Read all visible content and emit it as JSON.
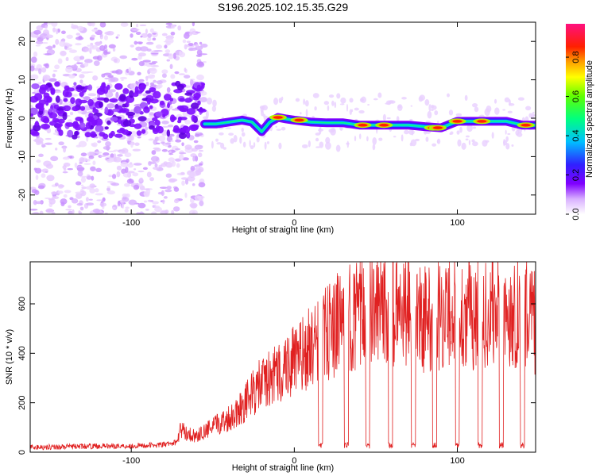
{
  "figure": {
    "title": "S196.2025.102.15.35.G29"
  },
  "chart_data": [
    {
      "type": "heatmap",
      "xlabel": "Height of straight line (km)",
      "ylabel": "Frequency (Hz)",
      "xlim": [
        -162,
        148
      ],
      "ylim": [
        -25,
        25
      ],
      "xticks": [
        -100,
        0,
        100
      ],
      "yticks": [
        -20,
        -10,
        0,
        10,
        20
      ],
      "grid": false,
      "colorbar": {
        "label": "Normalized spectral amplitude",
        "range": [
          0,
          0.97
        ],
        "ticks": [
          0.0,
          0.2,
          0.4,
          0.6,
          0.8
        ],
        "colormap": "white-violet-blue-cyan-green-yellow-orange-red-magenta"
      },
      "noise_region_x": [
        -162,
        -55
      ],
      "ridge": {
        "x": [
          -55,
          -48,
          -40,
          -32,
          -26,
          -20,
          -15,
          -10,
          -5,
          0,
          10,
          20,
          30,
          40,
          50,
          60,
          70,
          80,
          90,
          100,
          110,
          120,
          130,
          140,
          148
        ],
        "y": [
          -1.5,
          -1.5,
          -1.0,
          -0.5,
          -1.0,
          -3.5,
          -1.0,
          0.2,
          -0.2,
          -0.5,
          -1.0,
          -1.2,
          -1.2,
          -1.8,
          -1.8,
          -1.8,
          -1.8,
          -2.2,
          -2.5,
          -0.8,
          -0.8,
          -0.8,
          -0.8,
          -1.8,
          -1.8
        ]
      },
      "peaks": [
        {
          "x": -10,
          "y": 0.2,
          "amp": 0.97
        },
        {
          "x": 3,
          "y": -0.5,
          "amp": 0.97
        },
        {
          "x": 42,
          "y": -1.8,
          "amp": 0.97
        },
        {
          "x": 55,
          "y": -1.8,
          "amp": 0.97
        },
        {
          "x": 85,
          "y": -2.5,
          "amp": 0.97
        },
        {
          "x": 88,
          "y": -2.5,
          "amp": 0.97
        },
        {
          "x": 100,
          "y": -0.8,
          "amp": 0.97
        },
        {
          "x": 115,
          "y": -0.8,
          "amp": 0.97
        },
        {
          "x": 142,
          "y": -1.8,
          "amp": 0.97
        }
      ]
    },
    {
      "type": "line",
      "xlabel": "Height of straight line (km)",
      "ylabel": "SNR (10 * v/v)",
      "xlim": [
        -162,
        148
      ],
      "ylim": [
        0,
        770
      ],
      "xticks": [
        -100,
        0,
        100
      ],
      "yticks": [
        0,
        200,
        400,
        600
      ],
      "grid": false,
      "series": [
        {
          "color": "#e02020",
          "x": [
            -162,
            -140,
            -120,
            -100,
            -80,
            -72,
            -70,
            -65,
            -60,
            -55,
            -50,
            -45,
            -40,
            -35,
            -30,
            -25,
            -20,
            -15,
            -10,
            -5,
            0,
            5,
            10,
            15,
            20,
            30,
            40,
            50,
            60,
            70,
            80,
            90,
            100,
            110,
            120,
            130,
            140,
            148
          ],
          "values": [
            20,
            22,
            25,
            25,
            30,
            40,
            100,
            80,
            70,
            90,
            110,
            130,
            150,
            180,
            220,
            260,
            300,
            320,
            340,
            380,
            400,
            420,
            460,
            480,
            520,
            580,
            600,
            610,
            620,
            600,
            580,
            600,
            620,
            600,
            620,
            600,
            630,
            560
          ]
        }
      ],
      "dropouts_x": [
        16,
        32,
        45,
        59,
        73,
        86,
        100,
        114,
        127,
        140
      ]
    }
  ]
}
